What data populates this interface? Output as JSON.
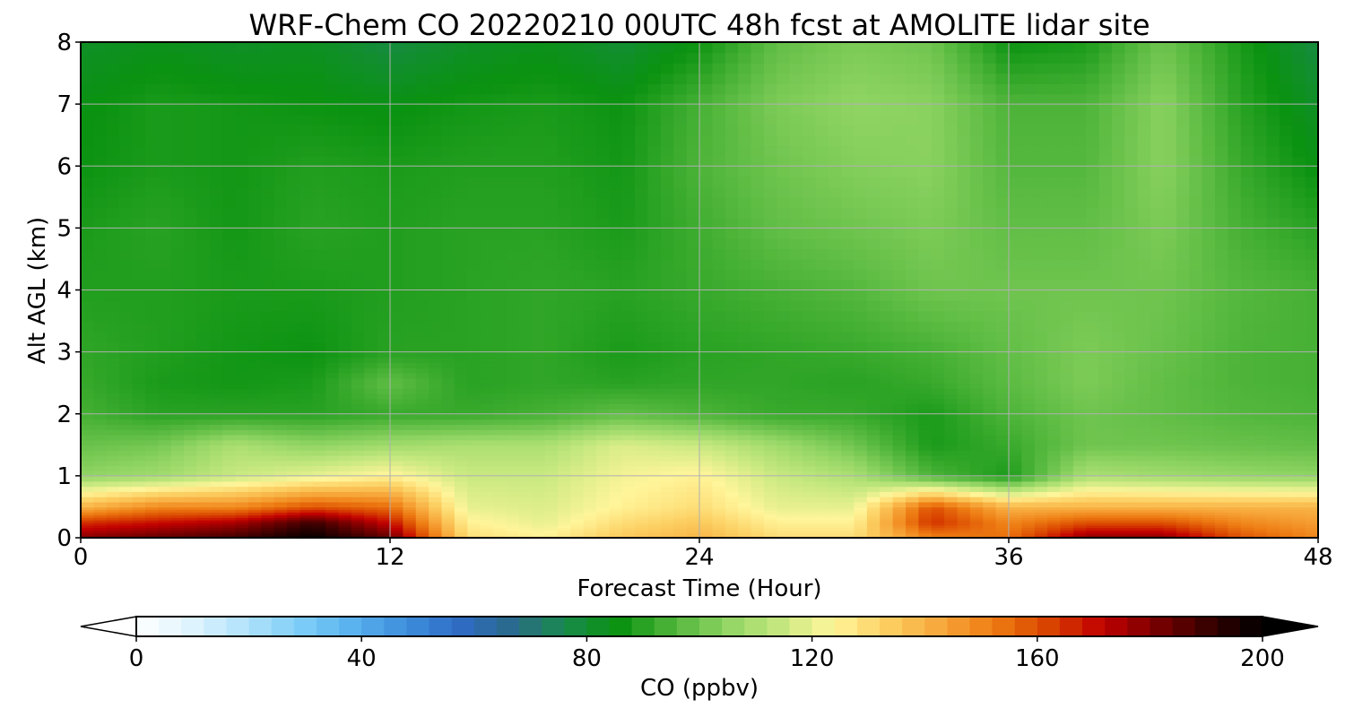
{
  "chart_data": {
    "type": "heatmap",
    "title": "WRF-Chem CO  20220210 00UTC 48h fcst at AMOLITE lidar site",
    "xlabel": "Forecast Time (Hour)",
    "ylabel": "Alt AGL (km)",
    "xlim": [
      0,
      48
    ],
    "ylim": [
      0,
      8
    ],
    "xticks": [
      "0",
      "12",
      "24",
      "36",
      "48"
    ],
    "yticks": [
      "0",
      "1",
      "2",
      "3",
      "4",
      "5",
      "6",
      "7",
      "8"
    ],
    "grid": true,
    "x": [
      0,
      3,
      6,
      9,
      12,
      15,
      18,
      21,
      24,
      27,
      30,
      33,
      36,
      39,
      42,
      45,
      48
    ],
    "y": [
      0,
      0.25,
      0.5,
      1,
      1.5,
      2,
      2.5,
      3,
      4,
      5,
      6,
      7,
      8
    ],
    "z": [
      [
        180,
        185,
        190,
        200,
        185,
        130,
        125,
        135,
        140,
        130,
        130,
        150,
        155,
        180,
        180,
        160,
        150
      ],
      [
        165,
        170,
        175,
        190,
        170,
        125,
        120,
        130,
        135,
        125,
        125,
        165,
        150,
        160,
        160,
        150,
        145
      ],
      [
        140,
        150,
        150,
        160,
        155,
        120,
        118,
        125,
        130,
        120,
        120,
        160,
        140,
        140,
        140,
        140,
        140
      ],
      [
        105,
        108,
        115,
        120,
        125,
        115,
        115,
        122,
        125,
        115,
        110,
        95,
        88,
        110,
        108,
        106,
        105
      ],
      [
        99,
        101,
        110,
        105,
        108,
        110,
        110,
        118,
        115,
        108,
        100,
        88,
        92,
        100,
        100,
        99,
        98
      ],
      [
        94,
        90,
        90,
        90,
        92,
        92,
        94,
        98,
        95,
        92,
        92,
        88,
        95,
        100,
        98,
        96,
        95
      ],
      [
        92,
        88,
        87,
        88,
        98,
        90,
        91,
        90,
        91,
        91,
        90,
        92,
        97,
        102,
        98,
        95,
        94
      ],
      [
        91,
        89,
        87,
        86,
        90,
        90,
        91,
        88,
        90,
        91,
        92,
        94,
        98,
        102,
        99,
        95,
        94
      ],
      [
        89,
        89,
        88,
        88,
        89,
        90,
        91,
        90,
        92,
        94,
        96,
        100,
        100,
        100,
        100,
        96,
        94
      ],
      [
        88,
        90,
        87,
        90,
        89,
        90,
        90,
        88,
        93,
        98,
        100,
        102,
        98,
        98,
        102,
        94,
        90
      ],
      [
        86,
        88,
        87,
        89,
        88,
        89,
        89,
        87,
        95,
        100,
        103,
        104,
        96,
        96,
        104,
        92,
        85
      ],
      [
        85,
        88,
        87,
        86,
        85,
        87,
        88,
        86,
        94,
        102,
        105,
        104,
        95,
        95,
        104,
        90,
        82
      ],
      [
        82,
        84,
        82,
        83,
        78,
        82,
        84,
        80,
        86,
        98,
        102,
        100,
        86,
        88,
        100,
        88,
        78
      ]
    ],
    "colorbar": {
      "label": "CO  (ppbv)",
      "min": 0,
      "max": 200,
      "ticks": [
        "0",
        "40",
        "80",
        "120",
        "160",
        "200"
      ],
      "extend": "both",
      "colors": [
        "#ffffff",
        "#dff4fd",
        "#b3e3fb",
        "#80cff8",
        "#5ab3ee",
        "#3e8fdd",
        "#2f6cc6",
        "#2b6a8c",
        "#198a4b",
        "#0a9210",
        "#4fb53a",
        "#8fd463",
        "#c5e87f",
        "#fff59a",
        "#fccf62",
        "#f7a73a",
        "#ed7b12",
        "#d94400",
        "#c20000",
        "#7a0000",
        "#380000",
        "#000000"
      ]
    }
  }
}
